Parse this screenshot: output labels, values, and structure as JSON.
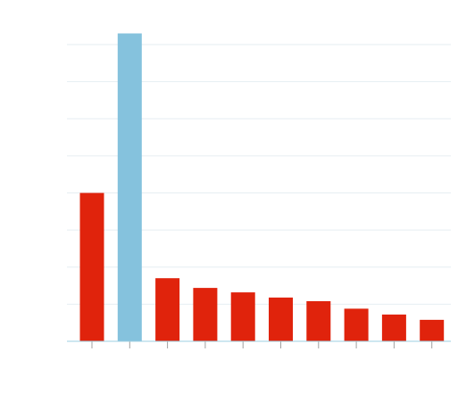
{
  "chart_data": {
    "type": "bar",
    "categories": [
      "",
      "",
      "",
      "",
      "",
      "",
      "",
      "",
      "",
      ""
    ],
    "values": [
      200,
      415,
      85,
      72,
      66,
      59,
      54,
      44,
      36,
      29
    ],
    "ylim": [
      0,
      400
    ],
    "grid": true,
    "gridline_values": [
      50,
      100,
      150,
      200,
      250,
      300,
      350,
      400
    ],
    "colors": {
      "default_bar": "#e0230c",
      "highlight_bar": "#85c2dd",
      "gridline": "#e6eef2",
      "baseline": "#9ecfe0",
      "tick": "#a0a0a0"
    },
    "highlight_index": 1,
    "title": "",
    "xlabel": "",
    "ylabel": ""
  }
}
